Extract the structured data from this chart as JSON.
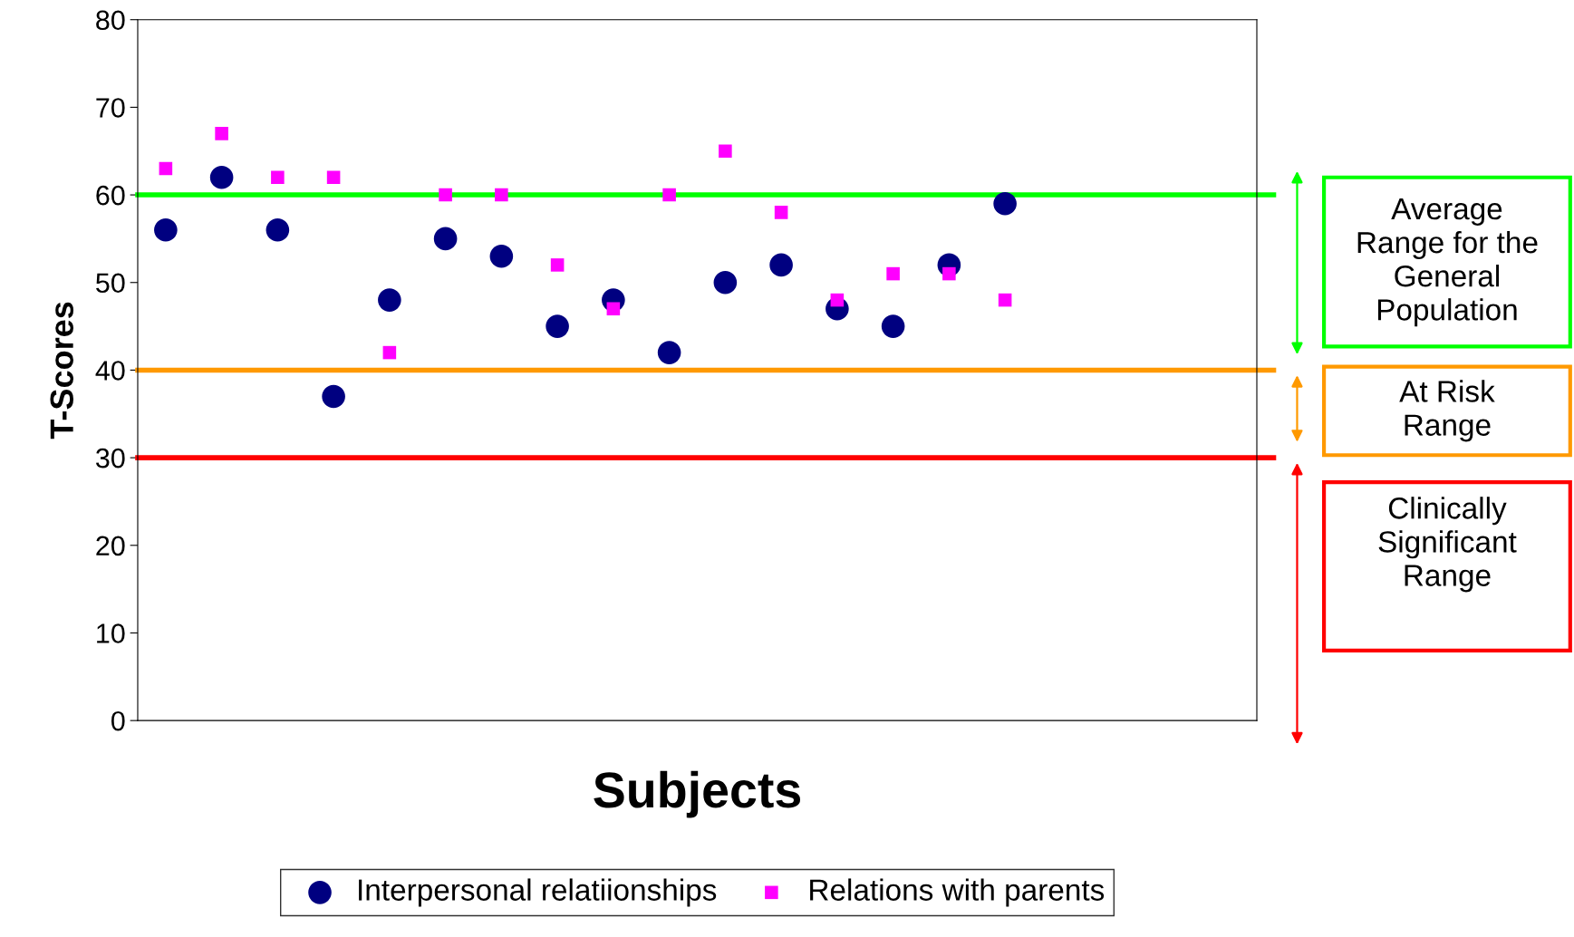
{
  "chart_data": {
    "type": "scatter",
    "xlabel": "Subjects",
    "ylabel": "T-Scores",
    "categories": [
      null,
      null,
      null,
      null,
      null,
      null,
      null,
      null,
      null,
      null,
      null,
      null,
      null,
      null,
      null,
      null,
      null,
      null,
      null,
      null
    ],
    "series": [
      {
        "name": "Interpersonal relatiionships",
        "color": "#000080",
        "marker": "circle",
        "values": [
          56,
          62,
          56,
          37,
          48,
          55,
          53,
          45,
          48,
          42,
          50,
          52,
          47,
          45,
          52,
          59,
          null,
          null,
          null,
          null
        ]
      },
      {
        "name": "Relations with parents",
        "color": "#ff00ff",
        "marker": "square",
        "values": [
          63,
          67,
          62,
          62,
          42,
          60,
          60,
          52,
          47,
          60,
          65,
          58,
          48,
          51,
          51,
          48,
          null,
          null,
          null,
          null
        ]
      }
    ],
    "ylim": [
      0,
      80
    ],
    "yticks": [
      0,
      10,
      20,
      30,
      40,
      50,
      60,
      70,
      80
    ],
    "ref_lines": [
      {
        "axis": "y",
        "value": 60,
        "color": "#00ff00"
      },
      {
        "axis": "y",
        "value": 40,
        "color": "#ff9900"
      },
      {
        "axis": "y",
        "value": 30,
        "color": "#ff0000"
      }
    ],
    "annotations": [
      "Average\nRange for the\nGeneral\nPopulation",
      "At Risk\nRange",
      "Clinically\nSignificant\nRange"
    ],
    "tick_labels": "y",
    "grid": false,
    "legend": "bottom"
  }
}
